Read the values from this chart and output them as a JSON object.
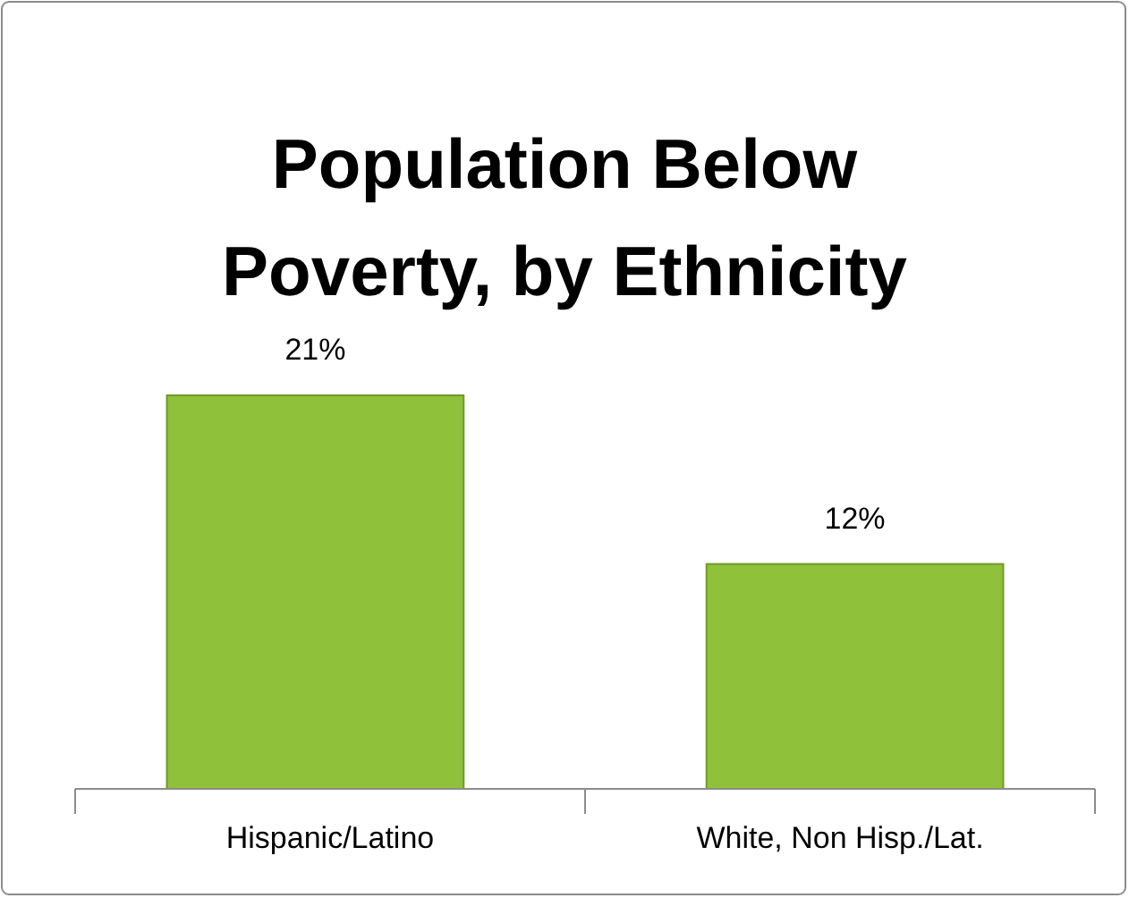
{
  "chart_data": {
    "type": "bar",
    "title": "Population Below Poverty, by Ethnicity",
    "categories": [
      "Hispanic/Latino",
      "White, Non Hisp./Lat."
    ],
    "values": [
      21,
      12
    ],
    "color": "#8fc13a",
    "value_labels": [
      "21%",
      "12%"
    ]
  }
}
